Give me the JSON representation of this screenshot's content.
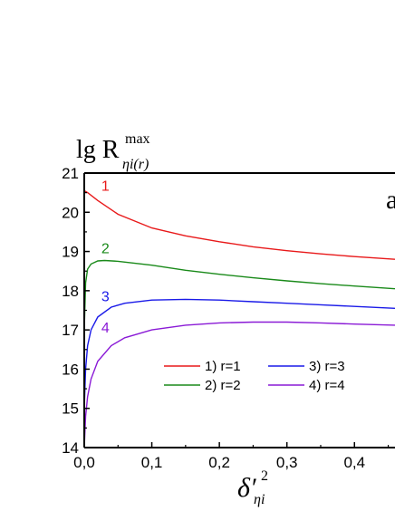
{
  "chart_data": {
    "type": "line",
    "ylabel": {
      "main": "lg R",
      "sup": "max",
      "sub": "ηi(r)"
    },
    "xlabel": {
      "main": "δ′",
      "sup": "2",
      "sub": "ηi"
    },
    "panel_label": "a",
    "xlim": [
      0.0,
      0.46
    ],
    "ylim": [
      14,
      21
    ],
    "x_ticks": [
      "0,0",
      "0,1",
      "0,2",
      "0,3",
      "0,4"
    ],
    "x_tick_values": [
      0.0,
      0.1,
      0.2,
      0.3,
      0.4
    ],
    "y_ticks": [
      "14",
      "15",
      "16",
      "17",
      "18",
      "19",
      "20",
      "21"
    ],
    "y_tick_values": [
      14,
      15,
      16,
      17,
      18,
      19,
      20,
      21
    ],
    "series": [
      {
        "name": "1) r=1",
        "label": "1",
        "color": "#e8191a",
        "points": [
          [
            0.0,
            20.55
          ],
          [
            0.005,
            20.5
          ],
          [
            0.02,
            20.3
          ],
          [
            0.05,
            19.95
          ],
          [
            0.1,
            19.6
          ],
          [
            0.15,
            19.4
          ],
          [
            0.2,
            19.25
          ],
          [
            0.25,
            19.12
          ],
          [
            0.3,
            19.02
          ],
          [
            0.35,
            18.94
          ],
          [
            0.4,
            18.87
          ],
          [
            0.46,
            18.8
          ]
        ]
      },
      {
        "name": "2) r=2",
        "label": "2",
        "color": "#1a8a1a",
        "points": [
          [
            0.0,
            17.0
          ],
          [
            0.002,
            18.2
          ],
          [
            0.005,
            18.55
          ],
          [
            0.01,
            18.68
          ],
          [
            0.02,
            18.76
          ],
          [
            0.03,
            18.77
          ],
          [
            0.05,
            18.75
          ],
          [
            0.1,
            18.65
          ],
          [
            0.15,
            18.52
          ],
          [
            0.2,
            18.42
          ],
          [
            0.25,
            18.33
          ],
          [
            0.3,
            18.25
          ],
          [
            0.35,
            18.18
          ],
          [
            0.4,
            18.12
          ],
          [
            0.46,
            18.05
          ]
        ]
      },
      {
        "name": "3) r=3",
        "label": "3",
        "color": "#1a1ae8",
        "points": [
          [
            0.0,
            15.0
          ],
          [
            0.002,
            16.0
          ],
          [
            0.005,
            16.6
          ],
          [
            0.01,
            17.0
          ],
          [
            0.02,
            17.33
          ],
          [
            0.04,
            17.58
          ],
          [
            0.06,
            17.68
          ],
          [
            0.1,
            17.76
          ],
          [
            0.15,
            17.78
          ],
          [
            0.2,
            17.76
          ],
          [
            0.25,
            17.72
          ],
          [
            0.3,
            17.68
          ],
          [
            0.35,
            17.64
          ],
          [
            0.4,
            17.6
          ],
          [
            0.46,
            17.55
          ]
        ]
      },
      {
        "name": "4) r=4",
        "label": "4",
        "color": "#8a1ad6",
        "points": [
          [
            0.0,
            14.0
          ],
          [
            0.002,
            14.8
          ],
          [
            0.005,
            15.3
          ],
          [
            0.01,
            15.75
          ],
          [
            0.02,
            16.2
          ],
          [
            0.04,
            16.6
          ],
          [
            0.06,
            16.8
          ],
          [
            0.1,
            17.0
          ],
          [
            0.15,
            17.12
          ],
          [
            0.2,
            17.18
          ],
          [
            0.25,
            17.2
          ],
          [
            0.3,
            17.2
          ],
          [
            0.35,
            17.18
          ],
          [
            0.4,
            17.15
          ],
          [
            0.46,
            17.12
          ]
        ]
      }
    ],
    "label_positions": [
      {
        "x": 0.02,
        "y": 20.55
      },
      {
        "x": 0.02,
        "y": 18.95
      },
      {
        "x": 0.02,
        "y": 17.73
      },
      {
        "x": 0.02,
        "y": 16.93
      }
    ],
    "legend_position": "lower-right",
    "grid": false
  }
}
